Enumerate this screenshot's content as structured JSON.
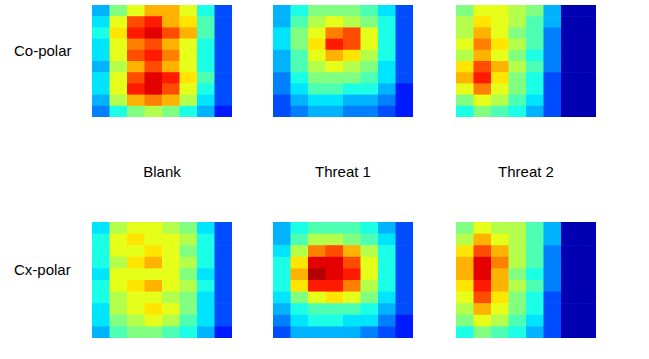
{
  "chart_data": {
    "type": "heatmap",
    "rows": [
      "Co-polar",
      "Cx-polar"
    ],
    "columns": [
      "Blank",
      "Threat 1",
      "Threat 2"
    ],
    "color": "jet",
    "color_range": [
      0,
      1
    ],
    "tick_labels": false,
    "cells": [
      [
        [
          [
            0.3,
            0.5,
            0.6,
            0.7,
            0.7,
            0.6,
            0.4,
            0.2
          ],
          [
            0.35,
            0.6,
            0.8,
            0.85,
            0.7,
            0.65,
            0.45,
            0.2
          ],
          [
            0.4,
            0.65,
            0.85,
            0.9,
            0.8,
            0.7,
            0.45,
            0.2
          ],
          [
            0.35,
            0.6,
            0.75,
            0.8,
            0.7,
            0.6,
            0.4,
            0.2
          ],
          [
            0.35,
            0.6,
            0.8,
            0.85,
            0.75,
            0.6,
            0.4,
            0.2
          ],
          [
            0.3,
            0.55,
            0.7,
            0.8,
            0.7,
            0.6,
            0.4,
            0.2
          ],
          [
            0.35,
            0.6,
            0.8,
            0.9,
            0.85,
            0.65,
            0.45,
            0.2
          ],
          [
            0.35,
            0.6,
            0.85,
            0.9,
            0.8,
            0.6,
            0.4,
            0.2
          ],
          [
            0.3,
            0.55,
            0.7,
            0.75,
            0.7,
            0.55,
            0.35,
            0.2
          ],
          [
            0.25,
            0.4,
            0.5,
            0.55,
            0.5,
            0.4,
            0.3,
            0.15
          ]
        ],
        [
          [
            0.3,
            0.4,
            0.5,
            0.5,
            0.5,
            0.45,
            0.35,
            0.2
          ],
          [
            0.3,
            0.45,
            0.55,
            0.6,
            0.55,
            0.5,
            0.4,
            0.2
          ],
          [
            0.35,
            0.5,
            0.6,
            0.75,
            0.8,
            0.6,
            0.4,
            0.2
          ],
          [
            0.35,
            0.5,
            0.65,
            0.85,
            0.8,
            0.6,
            0.4,
            0.2
          ],
          [
            0.3,
            0.45,
            0.6,
            0.7,
            0.65,
            0.55,
            0.4,
            0.2
          ],
          [
            0.3,
            0.45,
            0.55,
            0.6,
            0.55,
            0.5,
            0.35,
            0.2
          ],
          [
            0.25,
            0.4,
            0.5,
            0.5,
            0.5,
            0.45,
            0.35,
            0.2
          ],
          [
            0.25,
            0.35,
            0.45,
            0.45,
            0.4,
            0.4,
            0.3,
            0.15
          ],
          [
            0.2,
            0.3,
            0.35,
            0.35,
            0.3,
            0.3,
            0.25,
            0.15
          ],
          [
            0.2,
            0.25,
            0.3,
            0.3,
            0.25,
            0.25,
            0.2,
            0.15
          ]
        ],
        [
          [
            0.5,
            0.6,
            0.6,
            0.55,
            0.5,
            0.3,
            0.05,
            0.05
          ],
          [
            0.55,
            0.65,
            0.6,
            0.55,
            0.45,
            0.3,
            0.05,
            0.05
          ],
          [
            0.55,
            0.7,
            0.6,
            0.5,
            0.45,
            0.25,
            0.05,
            0.05
          ],
          [
            0.6,
            0.75,
            0.65,
            0.55,
            0.45,
            0.25,
            0.05,
            0.05
          ],
          [
            0.55,
            0.7,
            0.6,
            0.5,
            0.4,
            0.25,
            0.05,
            0.05
          ],
          [
            0.65,
            0.8,
            0.7,
            0.55,
            0.45,
            0.25,
            0.05,
            0.05
          ],
          [
            0.7,
            0.85,
            0.65,
            0.5,
            0.4,
            0.2,
            0.05,
            0.05
          ],
          [
            0.6,
            0.75,
            0.6,
            0.5,
            0.4,
            0.2,
            0.05,
            0.05
          ],
          [
            0.5,
            0.6,
            0.55,
            0.45,
            0.35,
            0.2,
            0.05,
            0.05
          ],
          [
            0.4,
            0.5,
            0.45,
            0.4,
            0.3,
            0.2,
            0.05,
            0.05
          ]
        ]
      ],
      [
        [
          [
            0.35,
            0.55,
            0.6,
            0.6,
            0.55,
            0.5,
            0.35,
            0.2
          ],
          [
            0.4,
            0.6,
            0.65,
            0.6,
            0.6,
            0.55,
            0.4,
            0.2
          ],
          [
            0.4,
            0.6,
            0.6,
            0.65,
            0.6,
            0.5,
            0.4,
            0.2
          ],
          [
            0.4,
            0.55,
            0.65,
            0.7,
            0.6,
            0.55,
            0.4,
            0.2
          ],
          [
            0.35,
            0.6,
            0.6,
            0.6,
            0.6,
            0.5,
            0.35,
            0.2
          ],
          [
            0.4,
            0.6,
            0.65,
            0.7,
            0.6,
            0.55,
            0.4,
            0.2
          ],
          [
            0.4,
            0.55,
            0.6,
            0.6,
            0.55,
            0.5,
            0.35,
            0.2
          ],
          [
            0.35,
            0.55,
            0.6,
            0.65,
            0.6,
            0.5,
            0.35,
            0.2
          ],
          [
            0.35,
            0.5,
            0.55,
            0.6,
            0.55,
            0.45,
            0.35,
            0.2
          ],
          [
            0.3,
            0.45,
            0.5,
            0.5,
            0.45,
            0.4,
            0.3,
            0.15
          ]
        ],
        [
          [
            0.3,
            0.4,
            0.45,
            0.45,
            0.45,
            0.4,
            0.3,
            0.2
          ],
          [
            0.3,
            0.45,
            0.55,
            0.55,
            0.5,
            0.45,
            0.35,
            0.2
          ],
          [
            0.35,
            0.55,
            0.75,
            0.8,
            0.7,
            0.55,
            0.4,
            0.2
          ],
          [
            0.4,
            0.65,
            0.9,
            0.9,
            0.8,
            0.6,
            0.4,
            0.2
          ],
          [
            0.4,
            0.7,
            0.95,
            0.9,
            0.85,
            0.6,
            0.4,
            0.2
          ],
          [
            0.4,
            0.65,
            0.85,
            0.85,
            0.75,
            0.55,
            0.4,
            0.2
          ],
          [
            0.35,
            0.5,
            0.6,
            0.65,
            0.6,
            0.5,
            0.35,
            0.2
          ],
          [
            0.3,
            0.4,
            0.45,
            0.45,
            0.45,
            0.4,
            0.3,
            0.2
          ],
          [
            0.25,
            0.35,
            0.4,
            0.4,
            0.35,
            0.35,
            0.25,
            0.15
          ],
          [
            0.2,
            0.3,
            0.3,
            0.3,
            0.3,
            0.25,
            0.2,
            0.15
          ]
        ],
        [
          [
            0.5,
            0.6,
            0.55,
            0.55,
            0.45,
            0.3,
            0.05,
            0.05
          ],
          [
            0.55,
            0.7,
            0.6,
            0.55,
            0.45,
            0.3,
            0.05,
            0.05
          ],
          [
            0.65,
            0.8,
            0.7,
            0.55,
            0.45,
            0.25,
            0.05,
            0.05
          ],
          [
            0.7,
            0.9,
            0.75,
            0.55,
            0.45,
            0.25,
            0.05,
            0.05
          ],
          [
            0.7,
            0.9,
            0.7,
            0.5,
            0.4,
            0.25,
            0.05,
            0.05
          ],
          [
            0.65,
            0.85,
            0.7,
            0.55,
            0.45,
            0.25,
            0.05,
            0.05
          ],
          [
            0.6,
            0.8,
            0.65,
            0.5,
            0.4,
            0.2,
            0.05,
            0.05
          ],
          [
            0.55,
            0.7,
            0.6,
            0.5,
            0.4,
            0.2,
            0.05,
            0.05
          ],
          [
            0.5,
            0.6,
            0.55,
            0.45,
            0.35,
            0.2,
            0.05,
            0.05
          ],
          [
            0.4,
            0.5,
            0.45,
            0.4,
            0.3,
            0.2,
            0.05,
            0.05
          ]
        ]
      ]
    ]
  }
}
